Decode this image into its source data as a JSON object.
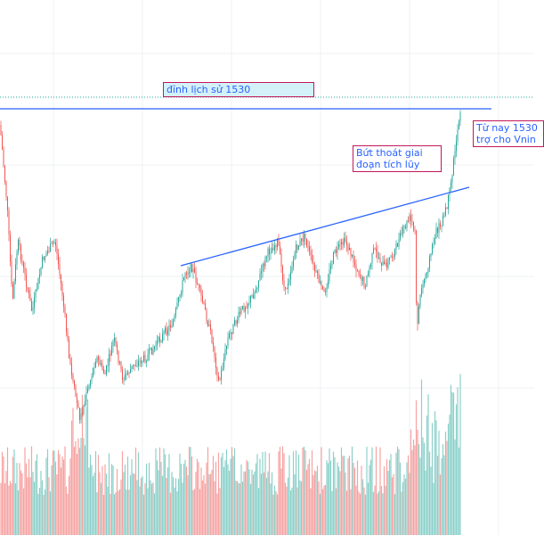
{
  "chart_data": {
    "type": "candlestick",
    "title": "",
    "annotations": {
      "all_time_high": "đỉnh lịch sử 1530",
      "breakout": "Bứt thoát giai đoạn tích lũy",
      "support_line1": "Từ nay 1530",
      "support_line2": "trợ cho Vnin"
    },
    "levels": {
      "all_time_high": 1530
    },
    "trendlines": [
      "horizontal resistance at all-time high",
      "ascending accumulation resistance"
    ],
    "grid": true,
    "colors": {
      "up": "#26a69a",
      "down": "#ef5350",
      "up_volume": "#26a69a88",
      "down_volume": "#ef535088",
      "line": "#2962ff",
      "note_border": "#c2185b",
      "note_fill": "#d4f1f9"
    }
  }
}
